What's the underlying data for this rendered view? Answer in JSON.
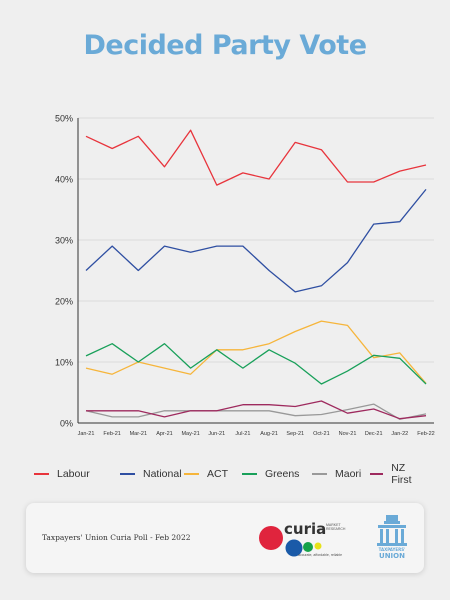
{
  "chart_data": {
    "type": "line",
    "title": "Decided Party Vote",
    "categories": [
      "Jan-21",
      "Feb-21",
      "Mar-21",
      "Apr-21",
      "May-21",
      "Jun-21",
      "Jul-21",
      "Aug-21",
      "Sep-21",
      "Oct-21",
      "Nov-21",
      "Dec-21",
      "Jan-22",
      "Feb-22"
    ],
    "ylim": [
      0,
      50
    ],
    "yticks": [
      "0%",
      "10%",
      "20%",
      "30%",
      "40%",
      "50%"
    ],
    "grid": true,
    "legend_position": "bottom",
    "series": [
      {
        "name": "Labour",
        "color": "#e8343c",
        "values": [
          47,
          45,
          47,
          42,
          48,
          39,
          41,
          40,
          46,
          44.8,
          39.5,
          39.5,
          41.3,
          42.3
        ]
      },
      {
        "name": "National",
        "color": "#2f4fa2",
        "values": [
          25,
          29,
          25,
          29,
          28,
          29,
          29,
          25,
          21.5,
          22.5,
          26.3,
          32.6,
          33,
          38.3
        ]
      },
      {
        "name": "ACT",
        "color": "#f6b53b",
        "values": [
          9,
          8,
          10,
          9,
          8,
          12,
          12,
          13,
          15,
          16.7,
          16,
          10.7,
          11.5,
          6.5
        ]
      },
      {
        "name": "Greens",
        "color": "#19a05a",
        "values": [
          11,
          13,
          10,
          13,
          9,
          12,
          9,
          12,
          9.8,
          6.4,
          8.5,
          11.1,
          10.6,
          6.4
        ]
      },
      {
        "name": "Maori",
        "color": "#999999",
        "values": [
          2,
          1,
          1,
          2,
          2,
          2,
          2,
          2,
          1.2,
          1.4,
          2.2,
          3.1,
          0.6,
          1.5
        ]
      },
      {
        "name": "NZ First",
        "color": "#9e2a5e",
        "values": [
          2,
          2,
          2,
          1,
          2,
          2,
          3,
          3,
          2.7,
          3.6,
          1.6,
          2.3,
          0.7,
          1.2
        ]
      }
    ]
  },
  "footer": {
    "caption": "Taxpayers' Union Curia Poll - Feb 2022",
    "curia_word": "curia",
    "curia_subtitle": "MARKET RESEARCH",
    "curia_tagline": "accurate, affordable, reliable",
    "tu_small": "TAXPAYERS'",
    "tu_big": "UNION"
  },
  "colors": {
    "title": "#6aaad7",
    "grid": "#c8c8c8",
    "axis": "#333333",
    "curia_red": "#e0243d",
    "curia_blue": "#1a5aa8",
    "curia_green": "#16a24a",
    "curia_yellow": "#e6e21a"
  }
}
